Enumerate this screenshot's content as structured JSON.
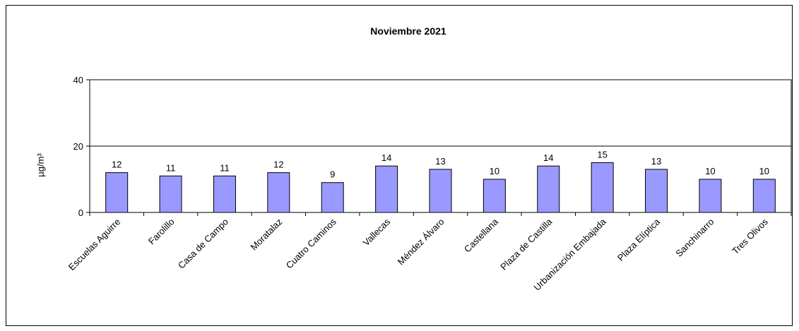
{
  "chart_data": {
    "type": "bar",
    "title": "Noviembre 2021",
    "xlabel": "",
    "ylabel": "µg/m³",
    "ylim": [
      0,
      40
    ],
    "yticks": [
      0,
      20,
      40
    ],
    "grid": true,
    "legend": "none",
    "bar_color": "#9999ff",
    "categories": [
      "Escuelas Aguirre",
      "Farolillo",
      "Casa de Campo",
      "Moratalaz",
      "Cuatro Caminos",
      "Vallecas",
      "Méndez Álvaro",
      "Castellana",
      "Plaza de Castilla",
      "Urbanización Embajada",
      "Plaza Elíptica",
      "Sanchinarro",
      "Tres Olivos"
    ],
    "values": [
      12,
      11,
      11,
      12,
      9,
      14,
      13,
      10,
      14,
      15,
      13,
      10,
      10
    ]
  }
}
